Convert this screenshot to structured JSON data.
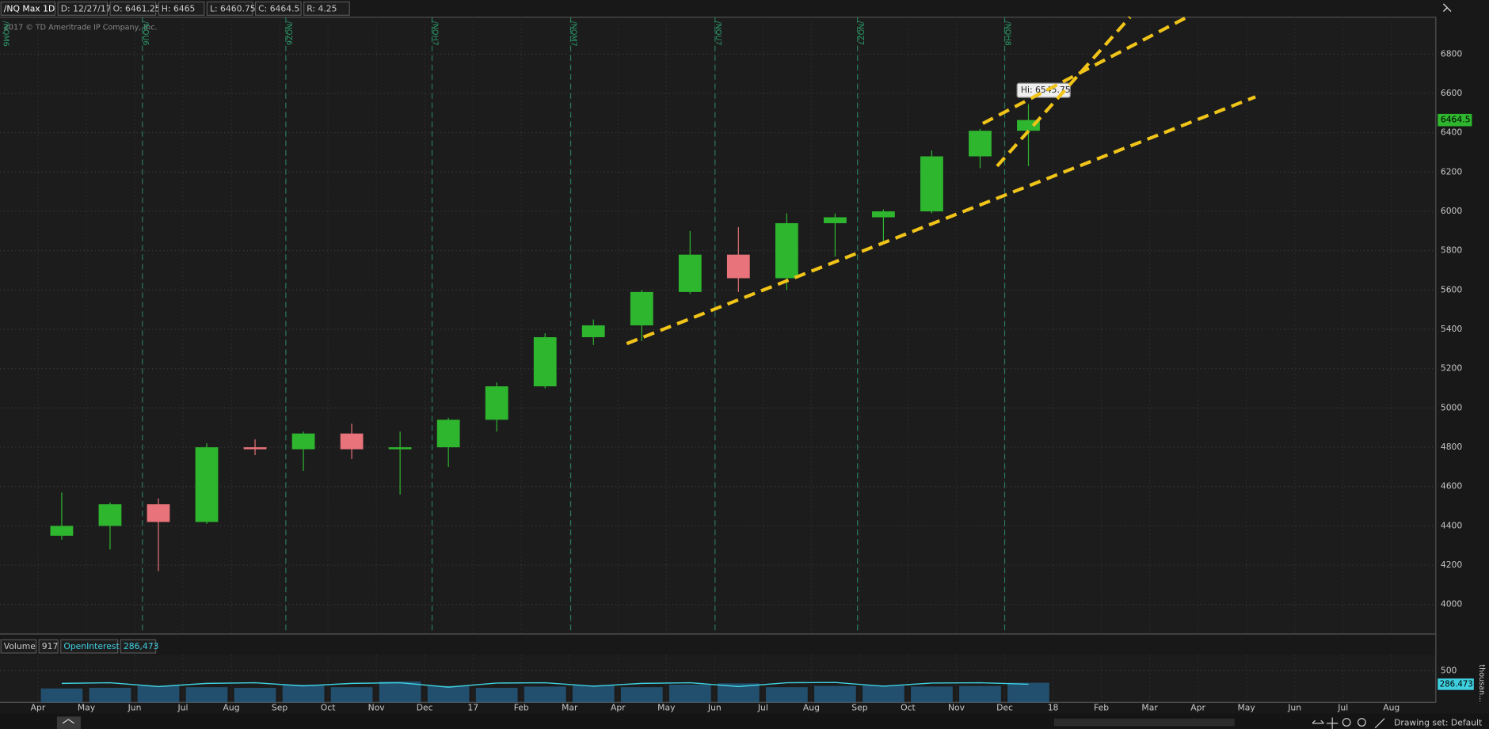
{
  "header": {
    "symbol": "/NQ Max 1D",
    "fields": [
      "D: 12/27/17",
      "O: 6461.25",
      "H: 6465",
      "L: 6460.75",
      "C: 6464.5",
      "R: 4.25"
    ]
  },
  "copyright": "2017 © TD Ameritrade IP Company, Inc.",
  "chart_data": [
    {
      "type": "candlestick",
      "categories": [
        "Apr",
        "May",
        "Jun",
        "Jul",
        "Aug",
        "Sep",
        "Oct",
        "Nov",
        "Dec",
        "17",
        "Feb",
        "Mar",
        "Apr",
        "May",
        "Jun",
        "Jul",
        "Aug",
        "Sep",
        "Oct",
        "Nov",
        "Dec",
        "18",
        "Feb",
        "Mar",
        "Apr",
        "May",
        "Jun",
        "Jul",
        "Aug"
      ],
      "open": [
        4350,
        4400,
        4510,
        4420,
        4800,
        4790,
        4870,
        4790,
        4800,
        4940,
        5110,
        5360,
        5420,
        5590,
        5780,
        5660,
        5940,
        5970,
        6000,
        6280,
        6410,
        null,
        null,
        null,
        null,
        null,
        null,
        null,
        null
      ],
      "high": [
        4570,
        4520,
        4540,
        4820,
        4840,
        4880,
        4920,
        4880,
        4950,
        5130,
        5380,
        5450,
        5600,
        5900,
        5920,
        5990,
        5990,
        6010,
        6310,
        6420,
        6545.75,
        null,
        null,
        null,
        null,
        null,
        null,
        null,
        null
      ],
      "low": [
        4330,
        4280,
        4170,
        4410,
        4760,
        4680,
        4740,
        4560,
        4700,
        4880,
        5100,
        5320,
        5340,
        5580,
        5590,
        5600,
        5770,
        5850,
        5990,
        6220,
        6230,
        null,
        null,
        null,
        null,
        null,
        null,
        null,
        null
      ],
      "close": [
        4400,
        4510,
        4420,
        4800,
        4790,
        4870,
        4790,
        4800,
        4940,
        5110,
        5360,
        5420,
        5590,
        5780,
        5660,
        5940,
        5970,
        6000,
        6280,
        6410,
        6464.5,
        null,
        null,
        null,
        null,
        null,
        null,
        null,
        null
      ],
      "colors": {
        "up": "#2fb62f",
        "down": "#e8737a"
      },
      "ylim": [
        3850,
        6988
      ],
      "yticks": [
        4000,
        4200,
        4400,
        4600,
        4800,
        5000,
        5200,
        5400,
        5600,
        5800,
        6000,
        6200,
        6400,
        6600,
        6800
      ],
      "grid": true,
      "annotation": "Hi: 6545.75",
      "expirations": [
        "/NQM6",
        "/NQU6",
        "/NQZ6",
        "/NQH7",
        "/NQM7",
        "/NQU7",
        "/NQZ7",
        "/NQH8"
      ]
    },
    {
      "type": "bar",
      "title": "Volume",
      "volume_now": "917",
      "oi_name": "OpenInterest",
      "oi_now": "286,473",
      "oi_tag": "286.473",
      "y_unit": "thousan...",
      "series": [
        {
          "name": "Volume",
          "color": "#2a8fd0",
          "kind": "bar",
          "values": [
            220,
            230,
            260,
            240,
            230,
            280,
            240,
            330,
            260,
            230,
            250,
            270,
            240,
            280,
            300,
            240,
            260,
            270,
            250,
            260,
            310,
            null,
            null,
            null,
            null,
            null,
            null,
            null,
            null
          ]
        },
        {
          "name": "OpenInterest",
          "color": "#3fd0e0",
          "kind": "line",
          "values": [
            300,
            310,
            250,
            300,
            310,
            260,
            300,
            310,
            240,
            305,
            310,
            255,
            300,
            310,
            250,
            310,
            315,
            255,
            305,
            310,
            286.473,
            null,
            null,
            null,
            null,
            null,
            null,
            null,
            null
          ]
        }
      ],
      "ylim": [
        0,
        750
      ],
      "yticks": [
        500
      ]
    }
  ],
  "footer": {
    "drawing_set": "Drawing set: Default"
  }
}
